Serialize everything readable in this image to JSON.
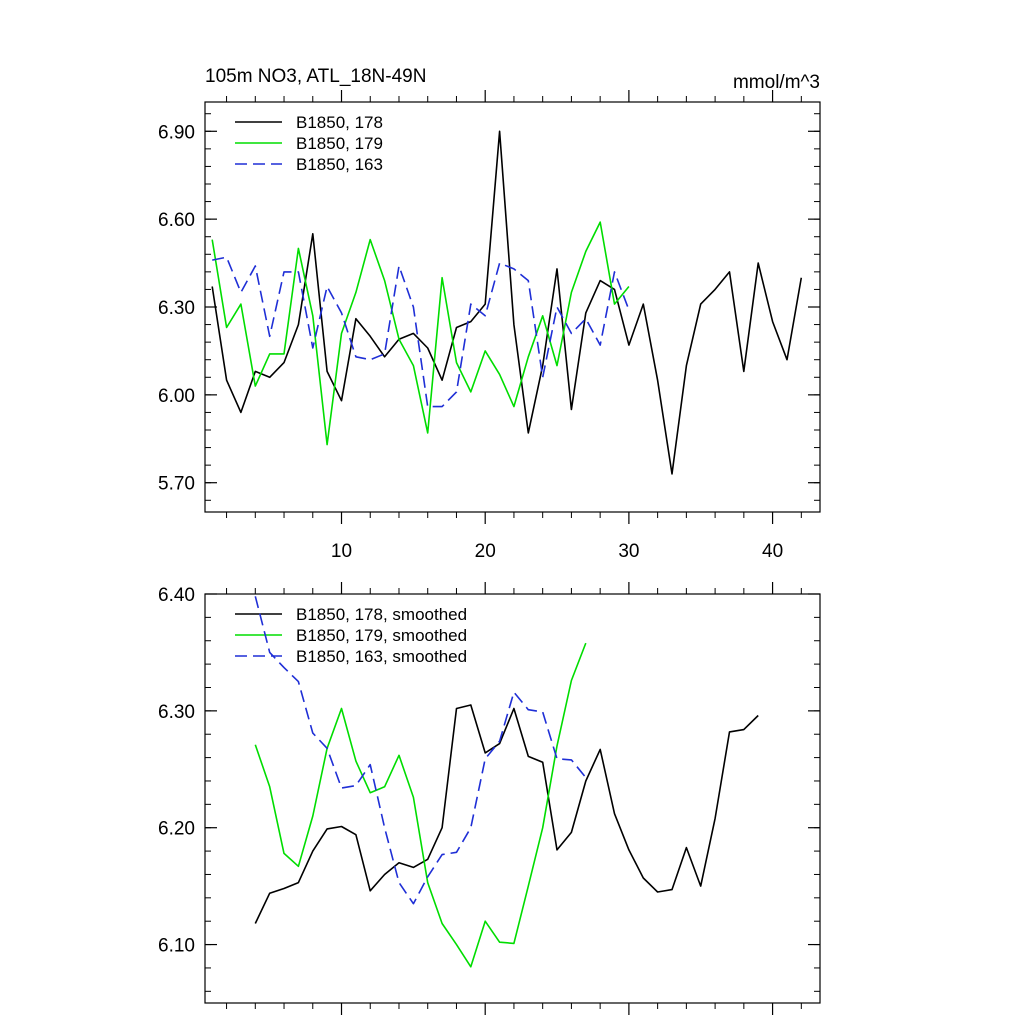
{
  "chart_data": [
    {
      "type": "line",
      "title": "105m NO3, ATL_18N-49N",
      "units": "mmol/m^3",
      "xlim": [
        0.5,
        43.3
      ],
      "ylim": [
        5.6,
        7.0
      ],
      "xticks": [
        10,
        20,
        30,
        40
      ],
      "xtick_labels": [
        "10",
        "20",
        "30",
        "40"
      ],
      "yticks": [
        5.7,
        6.0,
        6.3,
        6.6,
        6.9
      ],
      "ytick_labels": [
        "5.70",
        "6.00",
        "6.30",
        "6.60",
        "6.90"
      ],
      "grid": false,
      "legend_position": "top-left",
      "series": [
        {
          "name": "B1850, 178",
          "color": "#000000",
          "dash": "solid",
          "x": [
            1,
            2,
            3,
            4,
            5,
            6,
            7,
            8,
            9,
            10,
            11,
            12,
            13,
            14,
            15,
            16,
            17,
            18,
            19,
            20,
            21,
            22,
            23,
            24,
            25,
            26,
            27,
            28,
            29,
            30,
            31,
            32,
            33,
            34,
            35,
            36,
            37,
            38,
            39,
            40,
            41,
            42
          ],
          "y": [
            6.37,
            6.05,
            5.94,
            6.08,
            6.06,
            6.11,
            6.24,
            6.55,
            6.08,
            5.98,
            6.26,
            6.2,
            6.13,
            6.19,
            6.21,
            6.16,
            6.05,
            6.23,
            6.25,
            6.31,
            6.9,
            6.24,
            5.87,
            6.1,
            6.43,
            5.95,
            6.28,
            6.39,
            6.36,
            6.17,
            6.31,
            6.05,
            5.73,
            6.1,
            6.31,
            6.36,
            6.42,
            6.08,
            6.45,
            6.25,
            6.12,
            6.4
          ]
        },
        {
          "name": "B1850, 179",
          "color": "#00dd00",
          "dash": "solid",
          "x": [
            1,
            2,
            3,
            4,
            5,
            6,
            7,
            8,
            9,
            10,
            11,
            12,
            13,
            14,
            15,
            16,
            17,
            18,
            19,
            20,
            21,
            22,
            23,
            24,
            25,
            26,
            27,
            28,
            29,
            30
          ],
          "y": [
            6.53,
            6.23,
            6.31,
            6.03,
            6.14,
            6.14,
            6.5,
            6.27,
            5.83,
            6.21,
            6.35,
            6.53,
            6.39,
            6.19,
            6.1,
            5.87,
            6.4,
            6.11,
            6.01,
            6.15,
            6.07,
            5.96,
            6.13,
            6.27,
            6.1,
            6.35,
            6.49,
            6.59,
            6.31,
            6.37
          ]
        },
        {
          "name": "B1850, 163",
          "color": "#1f2fd6",
          "dash": "dashed",
          "x": [
            1,
            2,
            3,
            4,
            5,
            6,
            7,
            8,
            9,
            10,
            11,
            12,
            13,
            14,
            15,
            16,
            17,
            18,
            19,
            20,
            21,
            22,
            23,
            24,
            25,
            26,
            27,
            28,
            29,
            30
          ],
          "y": [
            6.46,
            6.47,
            6.35,
            6.44,
            6.2,
            6.42,
            6.42,
            6.16,
            6.37,
            6.28,
            6.13,
            6.12,
            6.14,
            6.44,
            6.3,
            5.96,
            5.96,
            6.01,
            6.31,
            6.27,
            6.45,
            6.43,
            6.39,
            6.06,
            6.3,
            6.21,
            6.26,
            6.17,
            6.42,
            6.29
          ]
        }
      ]
    },
    {
      "type": "line",
      "title": "",
      "units": "",
      "xlim": [
        0.5,
        43.3
      ],
      "ylim": [
        6.05,
        6.4
      ],
      "xticks": [
        10,
        20,
        30,
        40
      ],
      "xtick_labels": [],
      "yticks": [
        6.1,
        6.2,
        6.3,
        6.4
      ],
      "ytick_labels": [
        "6.10",
        "6.20",
        "6.30",
        "6.40"
      ],
      "grid": false,
      "legend_position": "top-left",
      "series": [
        {
          "name": "B1850, 178, smoothed",
          "color": "#000000",
          "dash": "solid",
          "x": [
            4,
            5,
            6,
            7,
            8,
            9,
            10,
            11,
            12,
            13,
            14,
            15,
            16,
            17,
            18,
            19,
            20,
            21,
            22,
            23,
            24,
            25,
            26,
            27,
            28,
            29,
            30,
            31,
            32,
            33,
            34,
            35,
            36,
            37,
            38,
            39
          ],
          "y": [
            6.118,
            6.144,
            6.148,
            6.153,
            6.18,
            6.199,
            6.201,
            6.194,
            6.146,
            6.16,
            6.17,
            6.166,
            6.173,
            6.2,
            6.302,
            6.305,
            6.264,
            6.272,
            6.302,
            6.261,
            6.256,
            6.181,
            6.196,
            6.24,
            6.267,
            6.212,
            6.181,
            6.157,
            6.145,
            6.147,
            6.183,
            6.15,
            6.208,
            6.282,
            6.284,
            6.296
          ]
        },
        {
          "name": "B1850, 179, smoothed",
          "color": "#00dd00",
          "dash": "solid",
          "x": [
            4,
            5,
            6,
            7,
            8,
            9,
            10,
            11,
            12,
            13,
            14,
            15,
            16,
            17,
            18,
            19,
            20,
            21,
            22,
            23,
            24,
            25,
            26,
            27
          ],
          "y": [
            6.271,
            6.235,
            6.178,
            6.167,
            6.21,
            6.268,
            6.302,
            6.257,
            6.23,
            6.235,
            6.262,
            6.226,
            6.153,
            6.118,
            6.1,
            6.081,
            6.12,
            6.102,
            6.101,
            6.15,
            6.2,
            6.27,
            6.326,
            6.358
          ]
        },
        {
          "name": "B1850, 163, smoothed",
          "color": "#1f2fd6",
          "dash": "dashed",
          "x": [
            4,
            5,
            6,
            7,
            8,
            9,
            10,
            11,
            12,
            13,
            14,
            15,
            16,
            17,
            18,
            19,
            20,
            21,
            22,
            23,
            24,
            25,
            26,
            27
          ],
          "y": [
            6.398,
            6.35,
            6.337,
            6.325,
            6.281,
            6.268,
            6.234,
            6.236,
            6.254,
            6.2,
            6.153,
            6.135,
            6.158,
            6.177,
            6.179,
            6.2,
            6.259,
            6.274,
            6.316,
            6.301,
            6.299,
            6.259,
            6.258,
            6.243
          ]
        }
      ]
    }
  ]
}
